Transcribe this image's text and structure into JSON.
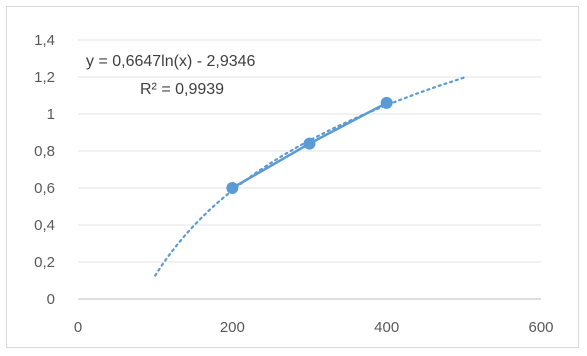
{
  "chart_data": {
    "type": "scatter",
    "title": "",
    "xlabel": "",
    "ylabel": "",
    "xlim": [
      0,
      600
    ],
    "ylim": [
      0,
      1.4
    ],
    "x_ticks": [
      0,
      200,
      400,
      600
    ],
    "x_tick_labels": [
      "0",
      "200",
      "400",
      "600"
    ],
    "y_ticks": [
      0,
      0.2,
      0.4,
      0.6,
      0.8,
      1.0,
      1.2,
      1.4
    ],
    "y_tick_labels": [
      "0",
      "0,2",
      "0,4",
      "0,6",
      "0,8",
      "1",
      "1,2",
      "1,4"
    ],
    "grid": "horizontal",
    "legend": "none",
    "series": [
      {
        "x": [
          200,
          300,
          400
        ],
        "y": [
          0.6,
          0.84,
          1.06
        ],
        "color": "#5b9bd5",
        "line": "solid",
        "markers": true
      }
    ],
    "trendline": {
      "kind": "logarithmic",
      "a": 0.6647,
      "b": -2.9346,
      "x_range": [
        100,
        500
      ],
      "color": "#5b9bd5",
      "line": "dotted"
    },
    "annotations": {
      "equation": "y = 0,6647ln(x) - 2,9346",
      "r_squared": "R² = 0,9939"
    }
  }
}
